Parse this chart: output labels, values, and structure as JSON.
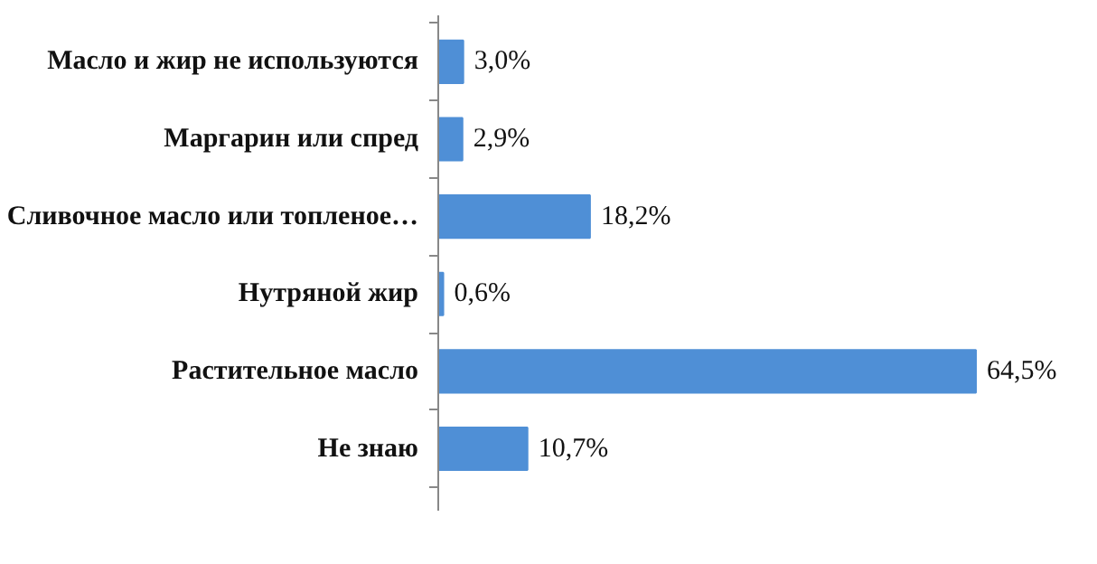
{
  "chart_data": {
    "type": "bar",
    "orientation": "horizontal",
    "categories": [
      "Масло и жир не используются",
      "Маргарин или спред",
      "Сливочное масло или топленое…",
      "Нутряной жир",
      "Растительное масло",
      "Не знаю"
    ],
    "values": [
      3.0,
      2.9,
      18.2,
      0.6,
      64.5,
      10.7
    ],
    "value_labels": [
      "3,0%",
      "2,9%",
      "18,2%",
      "0,6%",
      "64,5%",
      "10,7%"
    ],
    "color": "#4f8fd6",
    "grid": false,
    "tick_labels": "y"
  }
}
